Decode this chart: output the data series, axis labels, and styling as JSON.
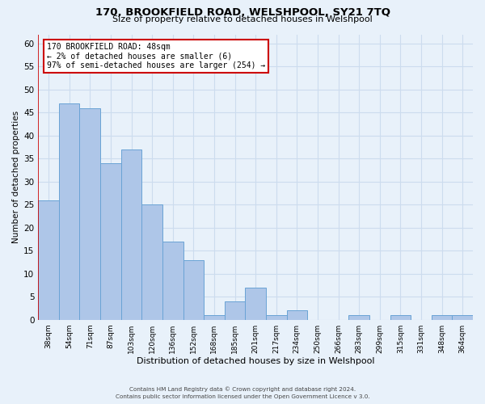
{
  "title": "170, BROOKFIELD ROAD, WELSHPOOL, SY21 7TQ",
  "subtitle": "Size of property relative to detached houses in Welshpool",
  "xlabel": "Distribution of detached houses by size in Welshpool",
  "ylabel": "Number of detached properties",
  "bar_labels": [
    "38sqm",
    "54sqm",
    "71sqm",
    "87sqm",
    "103sqm",
    "120sqm",
    "136sqm",
    "152sqm",
    "168sqm",
    "185sqm",
    "201sqm",
    "217sqm",
    "234sqm",
    "250sqm",
    "266sqm",
    "283sqm",
    "299sqm",
    "315sqm",
    "331sqm",
    "348sqm",
    "364sqm"
  ],
  "bar_values": [
    26,
    47,
    46,
    34,
    37,
    25,
    17,
    13,
    1,
    4,
    7,
    1,
    2,
    0,
    0,
    1,
    0,
    1,
    0,
    1,
    1
  ],
  "bar_color": "#aec6e8",
  "bar_edge_color": "#6aa3d5",
  "ylim": [
    0,
    62
  ],
  "yticks": [
    0,
    5,
    10,
    15,
    20,
    25,
    30,
    35,
    40,
    45,
    50,
    55,
    60
  ],
  "annotation_lines": [
    "170 BROOKFIELD ROAD: 48sqm",
    "← 2% of detached houses are smaller (6)",
    "97% of semi-detached houses are larger (254) →"
  ],
  "annotation_box_color": "#ffffff",
  "annotation_box_edge": "#cc0000",
  "red_line_color": "#cc0000",
  "grid_color": "#ccdcee",
  "background_color": "#e8f1fa",
  "footer_line1": "Contains HM Land Registry data © Crown copyright and database right 2024.",
  "footer_line2": "Contains public sector information licensed under the Open Government Licence v 3.0."
}
